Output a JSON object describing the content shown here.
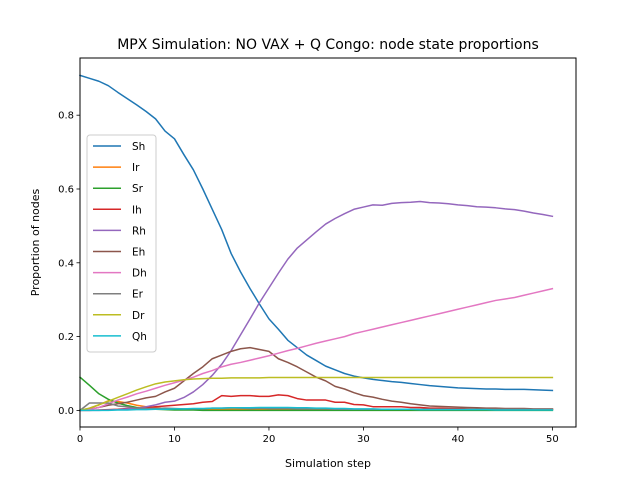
{
  "chart_data": {
    "type": "line",
    "title": "MPX Simulation: NO VAX + Q Congo: node state proportions",
    "xlabel": "Simulation step",
    "ylabel": "Proportion of nodes",
    "xlim": [
      0,
      52.5
    ],
    "ylim": [
      -0.045,
      0.955
    ],
    "xticks": [
      0,
      10,
      20,
      30,
      40,
      50
    ],
    "yticks": [
      0.0,
      0.2,
      0.4,
      0.6,
      0.8
    ],
    "ytick_labels": [
      "0.0",
      "0.2",
      "0.4",
      "0.6",
      "0.8"
    ],
    "grid": false,
    "legend_position": "center-left",
    "x": [
      0,
      1,
      2,
      3,
      4,
      5,
      6,
      7,
      8,
      9,
      10,
      11,
      12,
      13,
      14,
      15,
      16,
      17,
      18,
      19,
      20,
      21,
      22,
      23,
      24,
      25,
      26,
      27,
      28,
      29,
      30,
      31,
      32,
      33,
      34,
      35,
      36,
      37,
      38,
      39,
      40,
      41,
      42,
      43,
      44,
      45,
      46,
      47,
      48,
      49,
      50
    ],
    "series": [
      {
        "name": "Sh",
        "color": "#1f77b4",
        "values": [
          0.908,
          0.9,
          0.892,
          0.88,
          0.862,
          0.845,
          0.828,
          0.81,
          0.79,
          0.757,
          0.736,
          0.693,
          0.652,
          0.6,
          0.545,
          0.49,
          0.425,
          0.375,
          0.33,
          0.288,
          0.248,
          0.22,
          0.19,
          0.17,
          0.15,
          0.135,
          0.12,
          0.11,
          0.1,
          0.093,
          0.088,
          0.084,
          0.081,
          0.078,
          0.076,
          0.073,
          0.07,
          0.067,
          0.065,
          0.063,
          0.061,
          0.06,
          0.059,
          0.058,
          0.058,
          0.057,
          0.057,
          0.057,
          0.056,
          0.055,
          0.054
        ]
      },
      {
        "name": "Ir",
        "color": "#ff7f0e",
        "values": [
          0.0,
          0.006,
          0.015,
          0.026,
          0.024,
          0.02,
          0.014,
          0.01,
          0.007,
          0.005,
          0.004,
          0.004,
          0.003,
          0.003,
          0.003,
          0.003,
          0.003,
          0.003,
          0.003,
          0.003,
          0.003,
          0.003,
          0.003,
          0.003,
          0.003,
          0.003,
          0.003,
          0.003,
          0.003,
          0.003,
          0.003,
          0.003,
          0.003,
          0.003,
          0.003,
          0.003,
          0.003,
          0.003,
          0.003,
          0.003,
          0.003,
          0.003,
          0.003,
          0.003,
          0.003,
          0.003,
          0.003,
          0.003,
          0.003,
          0.003,
          0.003
        ]
      },
      {
        "name": "Sr",
        "color": "#2ca02c",
        "values": [
          0.09,
          0.068,
          0.045,
          0.03,
          0.02,
          0.013,
          0.008,
          0.005,
          0.003,
          0.002,
          0.001,
          0.001,
          0.001,
          0.0,
          0.0,
          0.0,
          0.0,
          0.0,
          0.0,
          0.0,
          0.0,
          0.0,
          0.0,
          0.0,
          0.0,
          0.0,
          0.0,
          0.0,
          0.0,
          0.0,
          0.0,
          0.0,
          0.0,
          0.0,
          0.0,
          0.0,
          0.0,
          0.0,
          0.0,
          0.0,
          0.0,
          0.0,
          0.0,
          0.0,
          0.0,
          0.0,
          0.0,
          0.0,
          0.0,
          0.0,
          0.0
        ]
      },
      {
        "name": "Ih",
        "color": "#d62728",
        "values": [
          0.0,
          0.0,
          0.001,
          0.002,
          0.003,
          0.005,
          0.006,
          0.008,
          0.01,
          0.012,
          0.014,
          0.016,
          0.018,
          0.022,
          0.024,
          0.04,
          0.038,
          0.04,
          0.04,
          0.038,
          0.038,
          0.042,
          0.04,
          0.032,
          0.028,
          0.028,
          0.028,
          0.022,
          0.022,
          0.016,
          0.015,
          0.01,
          0.01,
          0.01,
          0.01,
          0.008,
          0.008,
          0.006,
          0.006,
          0.005,
          0.005,
          0.004,
          0.003,
          0.003,
          0.003,
          0.003,
          0.003,
          0.003,
          0.003,
          0.003,
          0.003
        ]
      },
      {
        "name": "Rh",
        "color": "#9467bd",
        "values": [
          0.0,
          0.0,
          0.0,
          0.001,
          0.002,
          0.004,
          0.006,
          0.01,
          0.015,
          0.022,
          0.025,
          0.035,
          0.05,
          0.07,
          0.095,
          0.125,
          0.162,
          0.205,
          0.248,
          0.292,
          0.332,
          0.372,
          0.41,
          0.44,
          0.462,
          0.484,
          0.505,
          0.52,
          0.533,
          0.545,
          0.551,
          0.557,
          0.556,
          0.561,
          0.563,
          0.564,
          0.566,
          0.563,
          0.562,
          0.56,
          0.557,
          0.555,
          0.552,
          0.551,
          0.549,
          0.546,
          0.544,
          0.54,
          0.535,
          0.531,
          0.526
        ]
      },
      {
        "name": "Eh",
        "color": "#8c564b",
        "values": [
          0.0,
          0.003,
          0.008,
          0.014,
          0.018,
          0.022,
          0.028,
          0.034,
          0.038,
          0.05,
          0.06,
          0.08,
          0.1,
          0.118,
          0.14,
          0.15,
          0.16,
          0.167,
          0.17,
          0.165,
          0.16,
          0.14,
          0.13,
          0.118,
          0.104,
          0.09,
          0.08,
          0.065,
          0.058,
          0.048,
          0.04,
          0.036,
          0.03,
          0.025,
          0.022,
          0.018,
          0.015,
          0.012,
          0.011,
          0.01,
          0.009,
          0.008,
          0.007,
          0.006,
          0.006,
          0.005,
          0.005,
          0.005,
          0.004,
          0.004,
          0.004
        ]
      },
      {
        "name": "Dh",
        "color": "#e377c2",
        "values": [
          0.0,
          0.002,
          0.008,
          0.018,
          0.028,
          0.036,
          0.045,
          0.052,
          0.06,
          0.068,
          0.075,
          0.082,
          0.09,
          0.1,
          0.108,
          0.118,
          0.125,
          0.13,
          0.136,
          0.142,
          0.148,
          0.155,
          0.162,
          0.168,
          0.175,
          0.182,
          0.188,
          0.194,
          0.2,
          0.208,
          0.214,
          0.22,
          0.226,
          0.232,
          0.238,
          0.244,
          0.25,
          0.256,
          0.262,
          0.268,
          0.274,
          0.28,
          0.286,
          0.292,
          0.298,
          0.302,
          0.306,
          0.312,
          0.318,
          0.324,
          0.33
        ]
      },
      {
        "name": "Er",
        "color": "#7f7f7f",
        "values": [
          0.0,
          0.02,
          0.02,
          0.02,
          0.012,
          0.01,
          0.006,
          0.005,
          0.005,
          0.006,
          0.005,
          0.004,
          0.004,
          0.004,
          0.006,
          0.006,
          0.007,
          0.006,
          0.005,
          0.006,
          0.005,
          0.005,
          0.005,
          0.004,
          0.004,
          0.004,
          0.004,
          0.003,
          0.003,
          0.003,
          0.003,
          0.003,
          0.003,
          0.003,
          0.003,
          0.003,
          0.003,
          0.003,
          0.003,
          0.003,
          0.003,
          0.003,
          0.003,
          0.003,
          0.003,
          0.003,
          0.003,
          0.003,
          0.003,
          0.003,
          0.003
        ]
      },
      {
        "name": "Dr",
        "color": "#bcbd22",
        "values": [
          0.0,
          0.006,
          0.015,
          0.025,
          0.035,
          0.045,
          0.055,
          0.064,
          0.072,
          0.077,
          0.08,
          0.083,
          0.085,
          0.086,
          0.087,
          0.087,
          0.088,
          0.088,
          0.088,
          0.088,
          0.089,
          0.089,
          0.089,
          0.089,
          0.089,
          0.089,
          0.089,
          0.089,
          0.089,
          0.089,
          0.089,
          0.089,
          0.089,
          0.089,
          0.089,
          0.089,
          0.089,
          0.089,
          0.089,
          0.089,
          0.089,
          0.089,
          0.089,
          0.089,
          0.089,
          0.089,
          0.089,
          0.089,
          0.089,
          0.089,
          0.089
        ]
      },
      {
        "name": "Qh",
        "color": "#17becf",
        "values": [
          0.0,
          0.0,
          0.0,
          0.0,
          0.001,
          0.001,
          0.002,
          0.002,
          0.003,
          0.003,
          0.004,
          0.004,
          0.005,
          0.005,
          0.006,
          0.006,
          0.007,
          0.007,
          0.007,
          0.008,
          0.008,
          0.008,
          0.008,
          0.007,
          0.007,
          0.006,
          0.006,
          0.005,
          0.005,
          0.004,
          0.004,
          0.004,
          0.003,
          0.003,
          0.003,
          0.003,
          0.002,
          0.002,
          0.002,
          0.002,
          0.002,
          0.002,
          0.002,
          0.002,
          0.001,
          0.001,
          0.001,
          0.001,
          0.001,
          0.001,
          0.001
        ]
      }
    ]
  }
}
